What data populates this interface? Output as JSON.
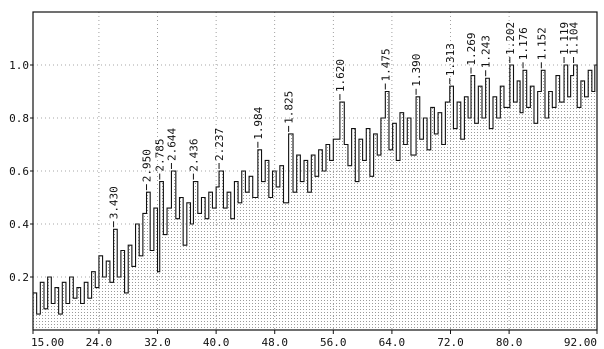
{
  "chart_data": {
    "type": "line",
    "title": "",
    "xlabel": "",
    "ylabel": "",
    "xlim": [
      15.0,
      92.0
    ],
    "ylim": [
      0.0,
      1.2
    ],
    "grid": true,
    "x_ticks": [
      {
        "value": 15.0,
        "label": "15.00"
      },
      {
        "value": 24.0,
        "label": "24.0"
      },
      {
        "value": 32.0,
        "label": "32.0"
      },
      {
        "value": 40.0,
        "label": "40.0"
      },
      {
        "value": 48.0,
        "label": "48.0"
      },
      {
        "value": 56.0,
        "label": "56.0"
      },
      {
        "value": 64.0,
        "label": "64.0"
      },
      {
        "value": 72.0,
        "label": "72.0"
      },
      {
        "value": 80.0,
        "label": "80.0"
      },
      {
        "value": 92.0,
        "label": "92.00"
      }
    ],
    "y_ticks": [
      {
        "value": 0.2,
        "label": "0.2"
      },
      {
        "value": 0.4,
        "label": "0.4"
      },
      {
        "value": 0.6,
        "label": "0.6"
      },
      {
        "value": 0.8,
        "label": "0.8"
      },
      {
        "value": 1.0,
        "label": "1.0"
      }
    ],
    "peaks": [
      {
        "x": 26.0,
        "y": 0.38,
        "label": "3.430"
      },
      {
        "x": 30.5,
        "y": 0.52,
        "label": "2.950"
      },
      {
        "x": 32.3,
        "y": 0.56,
        "label": "2.785"
      },
      {
        "x": 33.9,
        "y": 0.6,
        "label": "2.644"
      },
      {
        "x": 36.9,
        "y": 0.56,
        "label": "2.436"
      },
      {
        "x": 40.4,
        "y": 0.6,
        "label": "2.237"
      },
      {
        "x": 45.7,
        "y": 0.68,
        "label": "1.984"
      },
      {
        "x": 49.9,
        "y": 0.74,
        "label": "1.825"
      },
      {
        "x": 56.9,
        "y": 0.86,
        "label": "1.620"
      },
      {
        "x": 63.1,
        "y": 0.9,
        "label": "1.475"
      },
      {
        "x": 67.3,
        "y": 0.88,
        "label": "1.390"
      },
      {
        "x": 71.9,
        "y": 0.92,
        "label": "1.313"
      },
      {
        "x": 74.8,
        "y": 0.96,
        "label": "1.269"
      },
      {
        "x": 76.8,
        "y": 0.95,
        "label": "1.243"
      },
      {
        "x": 80.1,
        "y": 1.0,
        "label": "1.202"
      },
      {
        "x": 81.9,
        "y": 0.98,
        "label": "1.176"
      },
      {
        "x": 84.4,
        "y": 0.98,
        "label": "1.152"
      },
      {
        "x": 87.5,
        "y": 1.0,
        "label": "1.119"
      },
      {
        "x": 88.8,
        "y": 1.0,
        "label": "1.104"
      }
    ],
    "series": [
      {
        "color": "#111111",
        "x": [
          15.0,
          15.5,
          16.0,
          16.5,
          17.0,
          17.5,
          18.0,
          18.5,
          19.0,
          19.5,
          20.0,
          20.5,
          21.0,
          21.5,
          22.0,
          22.5,
          23.0,
          23.5,
          24.0,
          24.5,
          25.0,
          25.5,
          26.0,
          26.5,
          27.0,
          27.5,
          28.0,
          28.5,
          29.0,
          29.5,
          30.0,
          30.5,
          31.0,
          31.5,
          32.0,
          32.3,
          32.8,
          33.3,
          33.9,
          34.5,
          35.0,
          35.5,
          36.0,
          36.5,
          36.9,
          37.5,
          38.0,
          38.5,
          39.0,
          39.5,
          40.0,
          40.4,
          41.0,
          41.5,
          42.0,
          42.5,
          43.0,
          43.5,
          44.0,
          44.5,
          45.0,
          45.7,
          46.2,
          46.7,
          47.2,
          47.7,
          48.2,
          48.7,
          49.2,
          49.9,
          50.5,
          51.0,
          51.5,
          52.0,
          52.5,
          53.0,
          53.5,
          54.0,
          54.5,
          55.0,
          55.5,
          56.0,
          56.9,
          57.5,
          58.0,
          58.5,
          59.0,
          59.5,
          60.0,
          60.5,
          61.0,
          61.5,
          62.0,
          62.5,
          63.1,
          63.6,
          64.1,
          64.6,
          65.1,
          65.6,
          66.1,
          66.6,
          67.3,
          67.8,
          68.3,
          68.8,
          69.3,
          69.8,
          70.3,
          70.8,
          71.3,
          71.9,
          72.4,
          72.9,
          73.4,
          73.9,
          74.4,
          74.8,
          75.3,
          75.8,
          76.3,
          76.8,
          77.3,
          77.8,
          78.3,
          78.8,
          79.3,
          80.1,
          80.6,
          81.1,
          81.5,
          81.9,
          82.4,
          82.9,
          83.4,
          83.9,
          84.4,
          84.9,
          85.4,
          85.9,
          86.4,
          86.9,
          87.5,
          88.0,
          88.4,
          88.8,
          89.3,
          89.8,
          90.3,
          90.8,
          91.3,
          91.7,
          92.0
        ],
        "y": [
          0.14,
          0.06,
          0.18,
          0.08,
          0.2,
          0.1,
          0.16,
          0.06,
          0.18,
          0.1,
          0.2,
          0.12,
          0.16,
          0.1,
          0.18,
          0.12,
          0.22,
          0.16,
          0.28,
          0.2,
          0.26,
          0.18,
          0.38,
          0.2,
          0.3,
          0.14,
          0.32,
          0.24,
          0.4,
          0.28,
          0.44,
          0.52,
          0.3,
          0.46,
          0.22,
          0.56,
          0.36,
          0.46,
          0.6,
          0.42,
          0.5,
          0.32,
          0.48,
          0.4,
          0.56,
          0.44,
          0.5,
          0.42,
          0.52,
          0.46,
          0.54,
          0.6,
          0.46,
          0.52,
          0.42,
          0.56,
          0.48,
          0.6,
          0.52,
          0.58,
          0.5,
          0.68,
          0.56,
          0.64,
          0.5,
          0.6,
          0.54,
          0.62,
          0.48,
          0.74,
          0.52,
          0.66,
          0.56,
          0.64,
          0.52,
          0.66,
          0.58,
          0.68,
          0.6,
          0.7,
          0.64,
          0.72,
          0.86,
          0.7,
          0.62,
          0.76,
          0.56,
          0.72,
          0.64,
          0.76,
          0.58,
          0.74,
          0.66,
          0.8,
          0.9,
          0.68,
          0.78,
          0.64,
          0.82,
          0.7,
          0.8,
          0.66,
          0.88,
          0.72,
          0.8,
          0.68,
          0.84,
          0.74,
          0.82,
          0.7,
          0.86,
          0.92,
          0.76,
          0.86,
          0.72,
          0.88,
          0.8,
          0.96,
          0.78,
          0.92,
          0.8,
          0.95,
          0.76,
          0.88,
          0.8,
          0.92,
          0.84,
          1.0,
          0.86,
          0.94,
          0.82,
          0.98,
          0.84,
          0.92,
          0.78,
          0.9,
          0.98,
          0.8,
          0.9,
          0.84,
          0.96,
          0.86,
          1.0,
          0.88,
          0.96,
          1.0,
          0.84,
          0.94,
          0.88,
          0.98,
          0.9,
          1.0,
          0.9
        ]
      }
    ]
  }
}
